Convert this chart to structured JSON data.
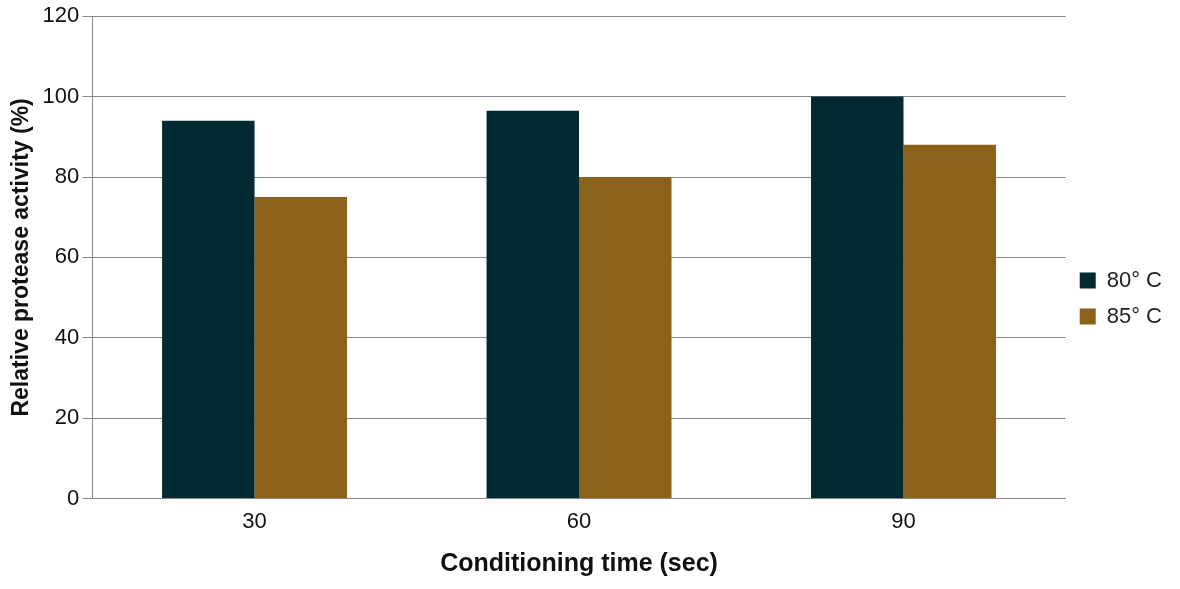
{
  "chart_data": {
    "type": "bar",
    "xlabel": "Conditioning time (sec)",
    "ylabel": "Relative protease activity (%)",
    "categories": [
      "30",
      "60",
      "90"
    ],
    "series": [
      {
        "name": "80° C",
        "color": "#032a32",
        "values": [
          94,
          96.5,
          100
        ]
      },
      {
        "name": "85° C",
        "color": "#8b621c",
        "values": [
          75,
          80,
          88
        ]
      }
    ],
    "ylim": [
      0,
      120
    ],
    "yticks": [
      0,
      20,
      40,
      60,
      80,
      100,
      120
    ],
    "grid": "y",
    "legend": "right"
  }
}
